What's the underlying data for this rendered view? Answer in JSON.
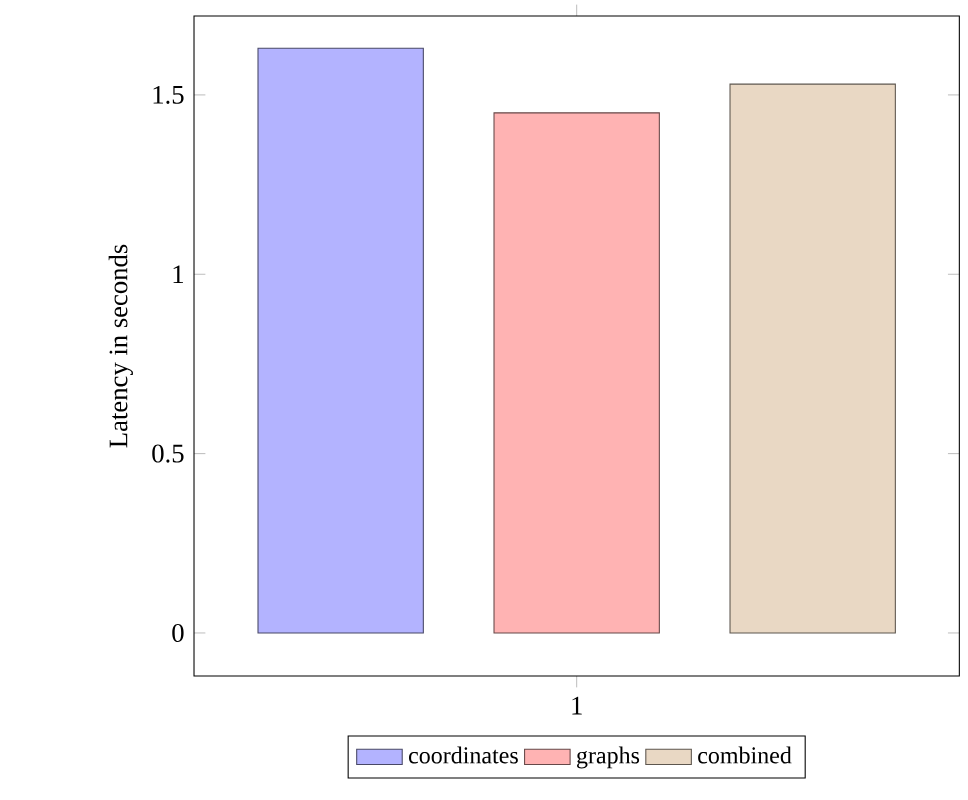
{
  "chart_data": {
    "type": "bar",
    "ylabel": "Latency in seconds",
    "categories": [
      null
    ],
    "annotations": [
      "1"
    ],
    "series": [
      {
        "name": "coordinates",
        "color": "#b3b3ff",
        "values": [
          1.63
        ]
      },
      {
        "name": "graphs",
        "color": "#ffb3b3",
        "values": [
          1.45
        ]
      },
      {
        "name": "combined",
        "color": "#e9d8c4",
        "values": [
          1.53
        ]
      }
    ],
    "ylim": [
      -0.12,
      1.72
    ],
    "yticks": [
      {
        "value": 0,
        "label": "0"
      },
      {
        "value": 0.5,
        "label": "0.5"
      },
      {
        "value": 1,
        "label": "1"
      },
      {
        "value": 1.5,
        "label": "1.5"
      }
    ],
    "legend": "bottom",
    "grid": false
  }
}
